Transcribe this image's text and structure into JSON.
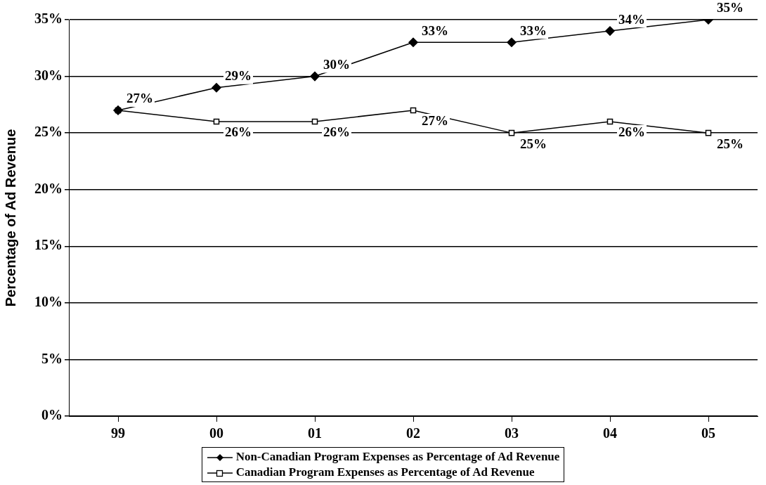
{
  "chart_data": {
    "type": "line",
    "ylabel": "Percentage of Ad Revenue",
    "categories": [
      "99",
      "00",
      "01",
      "02",
      "03",
      "04",
      "05"
    ],
    "series": [
      {
        "name": "Non-Canadian Program Expenses as Percentage of Ad Revenue",
        "color": "#000000",
        "marker": "diamond",
        "values": [
          27,
          29,
          30,
          33,
          33,
          34,
          35
        ],
        "value_labels": [
          "27%",
          "29%",
          "30%",
          "33%",
          "33%",
          "34%",
          "35%"
        ]
      },
      {
        "name": "Canadian Program Expenses as Percentage of Ad Revenue",
        "color": "#000000",
        "marker": "square",
        "values": [
          27,
          26,
          26,
          27,
          25,
          26,
          25
        ],
        "value_labels": [
          null,
          "26%",
          "26%",
          "27%",
          "25%",
          "26%",
          "25%"
        ]
      }
    ],
    "ylim": [
      0,
      35
    ],
    "yticks": [
      {
        "value": 0,
        "label": "0%"
      },
      {
        "value": 5,
        "label": "5%"
      },
      {
        "value": 10,
        "label": "10%"
      },
      {
        "value": 15,
        "label": "15%"
      },
      {
        "value": 20,
        "label": "20%"
      },
      {
        "value": 25,
        "label": "25%"
      },
      {
        "value": 30,
        "label": "30%"
      },
      {
        "value": 35,
        "label": "35%"
      }
    ],
    "grid": "y",
    "legend": "bottom",
    "line_style": "solid"
  }
}
